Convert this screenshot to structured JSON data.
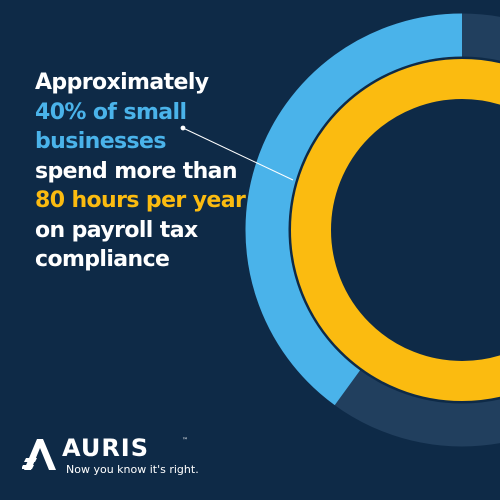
{
  "headline": {
    "line1": "Approximately",
    "line2": "40% of small",
    "line3": "businesses",
    "line4": "spend more than",
    "line5": "80 hours per year",
    "line6": "on payroll tax",
    "line7": "compliance"
  },
  "colors": {
    "background": "#0e2a47",
    "ring_track": "#213f5e",
    "accent_blue": "#4ab3ea",
    "accent_yellow": "#fbbb10",
    "text": "#ffffff"
  },
  "chart_data": {
    "type": "pie",
    "rings": [
      {
        "ring": "outer",
        "percent": 40,
        "color": "#4ab3ea",
        "track_color": "#213f5e"
      },
      {
        "ring": "inner",
        "percent": 100,
        "color": "#fbbb10"
      }
    ]
  },
  "brand": {
    "name": "AURIS",
    "trademark": "™",
    "tagline": "Now you know it's right.",
    "logo_icon": "auris-a-mark-icon"
  }
}
